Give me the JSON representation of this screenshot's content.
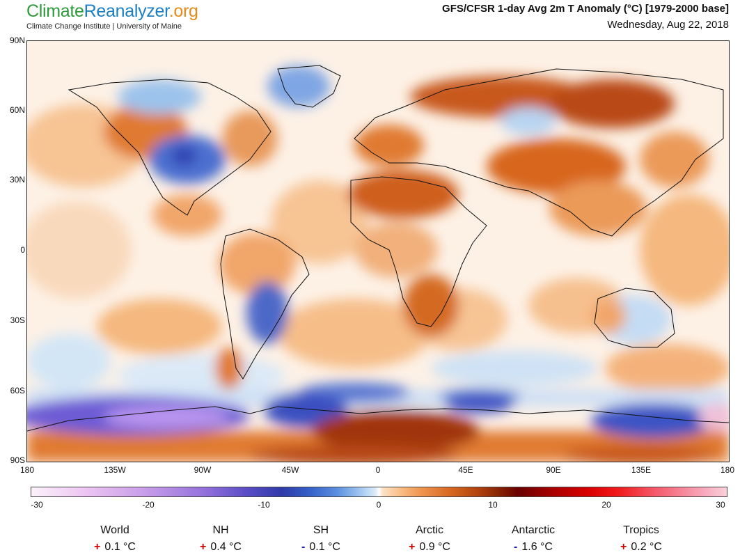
{
  "header": {
    "logo_part1": "Climate",
    "logo_part2": "Reanalyzer",
    "logo_part3": ".org",
    "institution": "Climate Change Institute | University of Maine",
    "title": "GFS/CFSR 1-day Avg 2m T Anomaly (°C) [1979-2000 base]",
    "date": "Wednesday, Aug 22, 2018"
  },
  "map": {
    "lat_labels": [
      "90N",
      "60N",
      "30N",
      "0",
      "30S",
      "60S",
      "90S"
    ],
    "lon_labels": [
      "180",
      "135W",
      "90W",
      "45W",
      "0",
      "45E",
      "90E",
      "135E",
      "180"
    ],
    "colors": {
      "warm_light": "#fbd6b4",
      "warm": "#f2a766",
      "warm_strong": "#d8661e",
      "hot": "#a8390c",
      "cool_light": "#d7e9f8",
      "cool": "#8fbde8",
      "cold": "#3d55c4",
      "very_cold": "#9b72e0"
    }
  },
  "colorbar": {
    "labels": [
      "-30",
      "-20",
      "-10",
      "0",
      "10",
      "20",
      "30"
    ]
  },
  "regions": [
    {
      "name": "World",
      "sign": "+",
      "value": "0.1 °C"
    },
    {
      "name": "NH",
      "sign": "+",
      "value": "0.4 °C"
    },
    {
      "name": "SH",
      "sign": "-",
      "value": "0.1 °C"
    },
    {
      "name": "Arctic",
      "sign": "+",
      "value": "0.9 °C"
    },
    {
      "name": "Antarctic",
      "sign": "-",
      "value": "1.6 °C"
    },
    {
      "name": "Tropics",
      "sign": "+",
      "value": "0.2 °C"
    }
  ]
}
